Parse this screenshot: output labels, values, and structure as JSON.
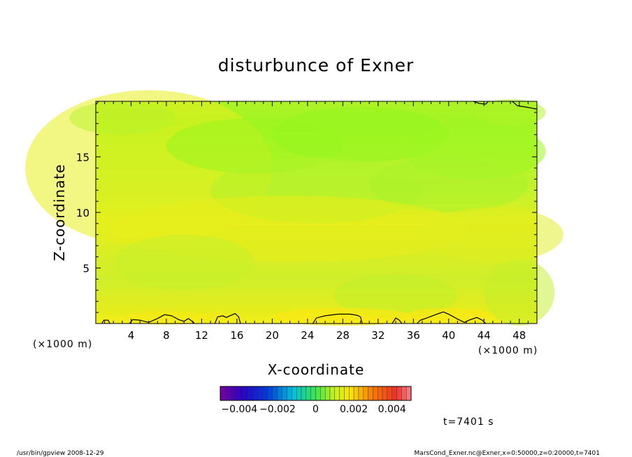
{
  "chart_data": {
    "type": "heatmap",
    "title": "disturbunce of Exner",
    "xlabel": "X-coordinate",
    "ylabel": "Z-coordinate",
    "x_unit_left": "(×1000 m)",
    "x_unit_right": "(×1000 m)",
    "xlim": [
      0,
      50
    ],
    "ylim": [
      0,
      20
    ],
    "x_ticks": [
      "4",
      "8",
      "12",
      "16",
      "20",
      "24",
      "28",
      "32",
      "36",
      "40",
      "44",
      "48"
    ],
    "x_tick_values": [
      4,
      8,
      12,
      16,
      20,
      24,
      28,
      32,
      36,
      40,
      44,
      48
    ],
    "y_ticks": [
      "5",
      "10",
      "15"
    ],
    "y_tick_values": [
      5,
      10,
      15
    ],
    "colorbar": {
      "range": [
        -0.005,
        0.005
      ],
      "tick_labels": [
        "−0.004",
        "−0.002",
        "0",
        "0.002",
        "0.004"
      ],
      "tick_values": [
        -0.004,
        -0.002,
        0,
        0.002,
        0.004
      ]
    },
    "field_rows_z": [
      0.5,
      2.5,
      4.5,
      6.5,
      8.5,
      10.5,
      12.5,
      14.5,
      16.5,
      18.5,
      19.8
    ],
    "field_value_by_row": [
      0.0006,
      0.0002,
      0.0001,
      0.0003,
      0.0004,
      0.0002,
      0.0,
      -0.0001,
      -0.0003,
      -0.0002,
      -0.0001
    ]
  },
  "annotations": {
    "time_label": "t=7401 s",
    "footer_left": "/usr/bin/gpview   2008-12-29",
    "footer_right": "MarsCond_Exner.nc@Exner,x=0:50000,z=0:20000,t=7401"
  }
}
